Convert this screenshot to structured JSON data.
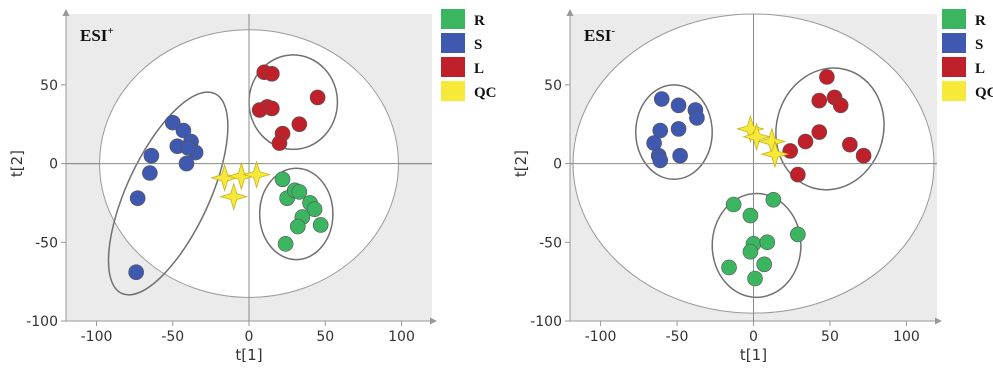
{
  "chart_data": [
    {
      "type": "scatter",
      "title": "",
      "panel_label": "ESI",
      "panel_label_sup": "+",
      "xlabel": "t[1]",
      "ylabel": "t[2]",
      "xlim": [
        -120,
        120
      ],
      "ylim": [
        -100,
        95
      ],
      "xticks": [
        -100,
        -50,
        0,
        50,
        100
      ],
      "yticks": [
        -100,
        -50,
        0,
        50
      ],
      "grid": false,
      "background": "#ebebeb",
      "legend_position": "right",
      "legend": [
        {
          "label": "R",
          "color": "#3cb560"
        },
        {
          "label": "S",
          "color": "#3f58b0"
        },
        {
          "label": "L",
          "color": "#c0202a"
        },
        {
          "label": "QC",
          "color": "#f7e93a"
        }
      ],
      "series": [
        {
          "name": "R",
          "marker": "circle",
          "color": "#3cb560",
          "points": [
            [
              22,
              -10
            ],
            [
              25,
              -22
            ],
            [
              30,
              -17
            ],
            [
              33,
              -18
            ],
            [
              40,
              -25
            ],
            [
              43,
              -29
            ],
            [
              35,
              -34
            ],
            [
              32,
              -40
            ],
            [
              47,
              -39
            ],
            [
              24,
              -51
            ]
          ]
        },
        {
          "name": "S",
          "marker": "circle",
          "color": "#3f58b0",
          "points": [
            [
              -50,
              26
            ],
            [
              -43,
              21
            ],
            [
              -38,
              14
            ],
            [
              -35,
              7
            ],
            [
              -47,
              11
            ],
            [
              -40,
              10
            ],
            [
              -64,
              5
            ],
            [
              -41,
              0
            ],
            [
              -65,
              -6
            ],
            [
              -73,
              -22
            ],
            [
              -74,
              -69
            ]
          ]
        },
        {
          "name": "L",
          "marker": "circle",
          "color": "#c0202a",
          "points": [
            [
              10,
              58
            ],
            [
              15,
              57
            ],
            [
              12,
              36
            ],
            [
              15,
              35
            ],
            [
              7,
              34
            ],
            [
              45,
              42
            ],
            [
              33,
              25
            ],
            [
              22,
              19
            ],
            [
              20,
              13
            ]
          ]
        },
        {
          "name": "QC",
          "marker": "star",
          "color": "#f7e93a",
          "points": [
            [
              -16,
              -9
            ],
            [
              -5,
              -8
            ],
            [
              5,
              -7
            ],
            [
              -10,
              -21
            ]
          ]
        }
      ],
      "ellipses": [
        {
          "cx": 0,
          "cy": 0,
          "rx": 98,
          "ry": 85,
          "rotation": 0
        },
        {
          "cx": 29,
          "cy": 39,
          "rx": 29,
          "ry": 30,
          "rotation": 0
        },
        {
          "cx": 31,
          "cy": -32,
          "rx": 24,
          "ry": 29,
          "rotation": 0
        },
        {
          "cx": -53,
          "cy": -19,
          "rx": 27,
          "ry": 70,
          "rotation": 25
        }
      ]
    },
    {
      "type": "scatter",
      "title": "",
      "panel_label": "ESI",
      "panel_label_sup": "-",
      "xlabel": "t[1]",
      "ylabel": "t[2]",
      "xlim": [
        -120,
        120
      ],
      "ylim": [
        -100,
        95
      ],
      "xticks": [
        -100,
        -50,
        0,
        50,
        100
      ],
      "yticks": [
        -100,
        -50,
        0,
        50
      ],
      "grid": false,
      "background": "#ebebeb",
      "legend_position": "right",
      "legend": [
        {
          "label": "R",
          "color": "#3cb560"
        },
        {
          "label": "S",
          "color": "#3f58b0"
        },
        {
          "label": "L",
          "color": "#c0202a"
        },
        {
          "label": "QC",
          "color": "#f7e93a"
        }
      ],
      "series": [
        {
          "name": "R",
          "marker": "circle",
          "color": "#3cb560",
          "points": [
            [
              -13,
              -26
            ],
            [
              -2,
              -33
            ],
            [
              13,
              -23
            ],
            [
              29,
              -45
            ],
            [
              0,
              -51
            ],
            [
              -2,
              -56
            ],
            [
              9,
              -50
            ],
            [
              7,
              -64
            ],
            [
              -16,
              -66
            ],
            [
              1,
              -73
            ]
          ]
        },
        {
          "name": "S",
          "marker": "circle",
          "color": "#3f58b0",
          "points": [
            [
              -60,
              41
            ],
            [
              -49,
              37
            ],
            [
              -38,
              34
            ],
            [
              -37,
              29
            ],
            [
              -61,
              21
            ],
            [
              -49,
              22
            ],
            [
              -65,
              13
            ],
            [
              -62,
              5
            ],
            [
              -61,
              2
            ],
            [
              -48,
              5
            ]
          ]
        },
        {
          "name": "L",
          "marker": "circle",
          "color": "#c0202a",
          "points": [
            [
              48,
              55
            ],
            [
              43,
              40
            ],
            [
              53,
              42
            ],
            [
              57,
              37
            ],
            [
              34,
              14
            ],
            [
              43,
              20
            ],
            [
              24,
              8
            ],
            [
              63,
              12
            ],
            [
              72,
              5
            ],
            [
              29,
              -7
            ]
          ]
        },
        {
          "name": "QC",
          "marker": "star",
          "color": "#f7e93a",
          "points": [
            [
              -2,
              22
            ],
            [
              2,
              17
            ],
            [
              12,
              14
            ],
            [
              14,
              6
            ]
          ]
        }
      ],
      "ellipses": [
        {
          "cx": 0,
          "cy": 0,
          "rx": 118,
          "ry": 95,
          "rotation": 0
        },
        {
          "cx": -52,
          "cy": 20,
          "rx": 25,
          "ry": 30,
          "rotation": 0
        },
        {
          "cx": 50,
          "cy": 22,
          "rx": 35,
          "ry": 39,
          "rotation": 15
        },
        {
          "cx": 2,
          "cy": -52,
          "rx": 29,
          "ry": 33,
          "rotation": 0
        }
      ]
    }
  ]
}
